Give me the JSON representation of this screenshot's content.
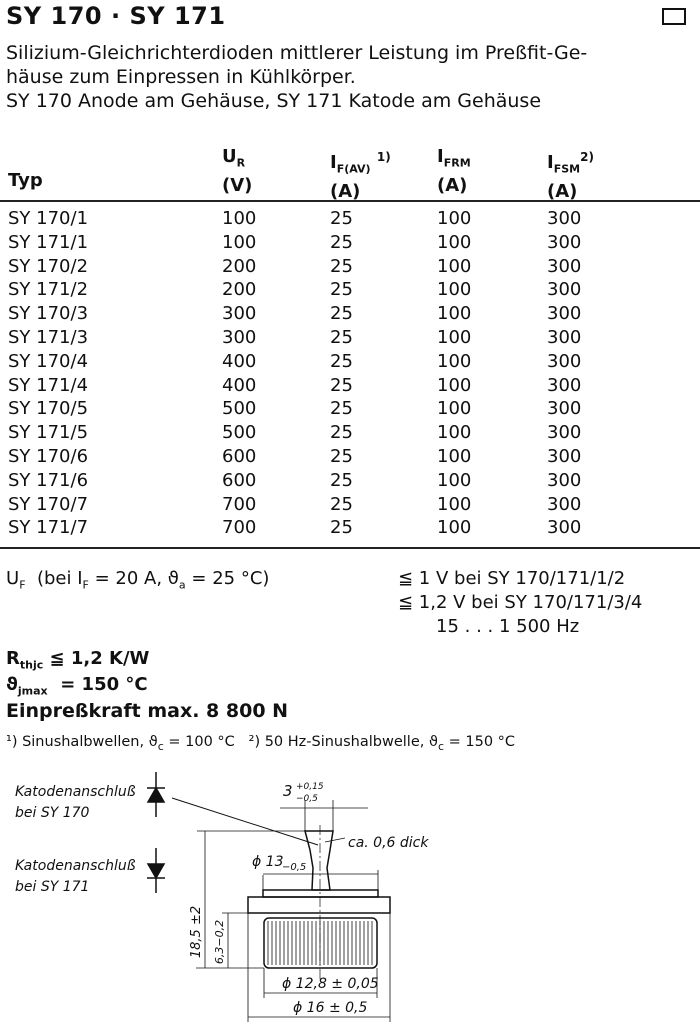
{
  "title": "SY 170 · SY 171",
  "description": [
    "Silizium-Gleichrichterdioden mittlerer Leistung im Preßfit-Ge-",
    "häuse zum Einpressen in Kühlkörper.",
    "SY 170 Anode am Gehäuse, SY 171 Katode am Gehäuse"
  ],
  "table": {
    "headers": [
      {
        "symbol": "Typ",
        "sub": "",
        "unit": ""
      },
      {
        "symbol": "U",
        "sub": "R",
        "unit": "(V)"
      },
      {
        "symbol": "I",
        "sub": "F(AV)",
        "sup": "1)",
        "unit": "(A)"
      },
      {
        "symbol": "I",
        "sub": "FRM",
        "unit": "(A)"
      },
      {
        "symbol": "I",
        "sub": "FSM",
        "sup": "2)",
        "unit": "(A)"
      }
    ],
    "rows": [
      [
        "SY 170/1",
        "100",
        "25",
        "100",
        "300"
      ],
      [
        "SY 171/1",
        "100",
        "25",
        "100",
        "300"
      ],
      [
        "SY 170/2",
        "200",
        "25",
        "100",
        "300"
      ],
      [
        "SY 171/2",
        "200",
        "25",
        "100",
        "300"
      ],
      [
        "SY 170/3",
        "300",
        "25",
        "100",
        "300"
      ],
      [
        "SY 171/3",
        "300",
        "25",
        "100",
        "300"
      ],
      [
        "SY 170/4",
        "400",
        "25",
        "100",
        "300"
      ],
      [
        "SY 171/4",
        "400",
        "25",
        "100",
        "300"
      ],
      [
        "SY 170/5",
        "500",
        "25",
        "100",
        "300"
      ],
      [
        "SY 171/5",
        "500",
        "25",
        "100",
        "300"
      ],
      [
        "SY 170/6",
        "600",
        "25",
        "100",
        "300"
      ],
      [
        "SY 171/6",
        "600",
        "25",
        "100",
        "300"
      ],
      [
        "SY 170/7",
        "700",
        "25",
        "100",
        "300"
      ],
      [
        "SY 171/7",
        "700",
        "25",
        "100",
        "300"
      ]
    ]
  },
  "specs": {
    "uf_label": "U",
    "uf_sub": "F",
    "uf_cond": "(bei I",
    "uf_cond_sub": "F",
    "uf_cond_rest": " = 20 A, ϑ",
    "uf_cond_sub2": "a",
    "uf_cond_end": " = 25 °C)",
    "uf_val1": "≦ 1 V bei SY 170/171/1/2",
    "uf_val2": "≦ 1,2 V bei SY 170/171/3/4",
    "freq": "15 . . . 1 500 Hz",
    "rth_label": "R",
    "rth_sub": "thjc",
    "rth_val": " ≦ 1,2 K/W",
    "tj_label": "ϑ",
    "tj_sub": "jmax",
    "tj_val": "  = 150 °C",
    "force": "Einpreßkraft max. 8 800 N",
    "footnote1": "¹) Sinushalbwellen, ϑ",
    "footnote1_sub": "c",
    "footnote1_end": " = 100 °C",
    "footnote2": "²) 50 Hz-Sinushalbwelle, ϑ",
    "footnote2_sub": "c",
    "footnote2_end": " = 150 °C"
  },
  "drawing": {
    "label_sy170_1": "Katodenanschluß",
    "label_sy170_2": "bei SY 170",
    "label_sy171_1": "Katodenanschluß",
    "label_sy171_2": "bei SY 171",
    "dim_tab_width": "3",
    "dim_tab_tol_plus": "+0,15",
    "dim_tab_tol_minus": "−0,5",
    "dim_thickness": "ca. 0,6 dick",
    "dim_flange": "ϕ 13",
    "dim_flange_tol": "−0,5",
    "dim_height": "18,5 ±2",
    "dim_knurl_height": "6,3−0,2",
    "dim_knurl_dia": "ϕ 12,8 ± 0,05",
    "dim_outer_dia": "ϕ 16 ± 0,5"
  }
}
